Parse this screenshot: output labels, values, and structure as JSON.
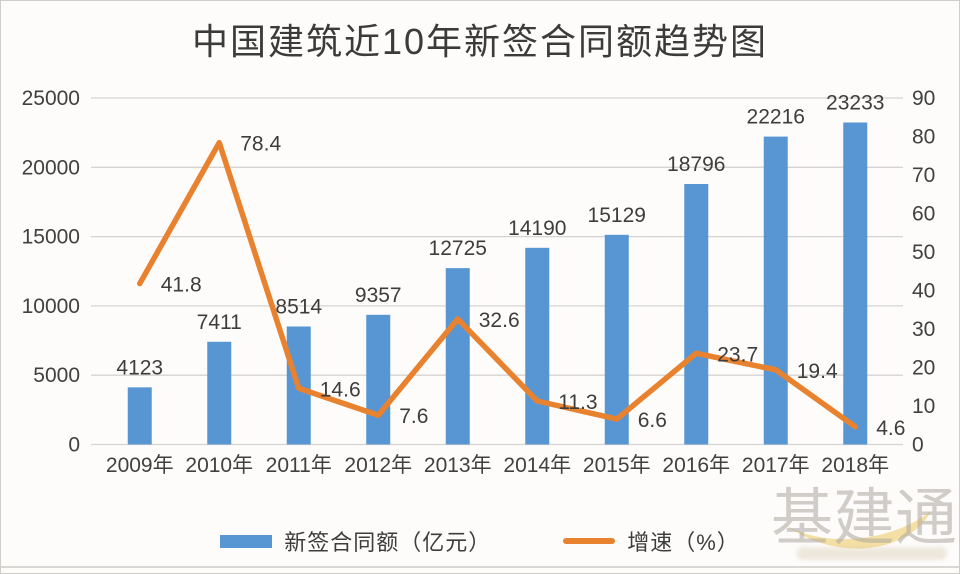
{
  "title": "中国建筑近10年新签合同额趋势图",
  "watermark": {
    "text": "基建通"
  },
  "chart_data": {
    "type": "bar+line combo",
    "title": "中国建筑近10年新签合同额趋势图",
    "categories": [
      "2009年",
      "2010年",
      "2011年",
      "2012年",
      "2013年",
      "2014年",
      "2015年",
      "2016年",
      "2017年",
      "2018年"
    ],
    "series": [
      {
        "name": "新签合同额（亿元）",
        "type": "bar",
        "axis": "left",
        "values": [
          4123,
          7411,
          8514,
          9357,
          12725,
          14190,
          15129,
          18796,
          22216,
          23233
        ]
      },
      {
        "name": "增速（%）",
        "type": "line",
        "axis": "right",
        "values": [
          41.8,
          78.4,
          14.6,
          7.6,
          32.6,
          11.3,
          6.6,
          23.7,
          19.4,
          4.6
        ]
      }
    ],
    "left_axis": {
      "min": 0,
      "max": 25000,
      "step": 5000
    },
    "right_axis": {
      "min": 0,
      "max": 90,
      "step": 10
    },
    "grid": "horizontal",
    "legend_position": "bottom",
    "data_labels": true,
    "colors": {
      "bar": "#5796D2",
      "line": "#E8822F",
      "grid": "#D6D4D2",
      "text": "#404040",
      "background": "#FDFCFB",
      "watermark_yellow": "#F3DC96"
    }
  }
}
